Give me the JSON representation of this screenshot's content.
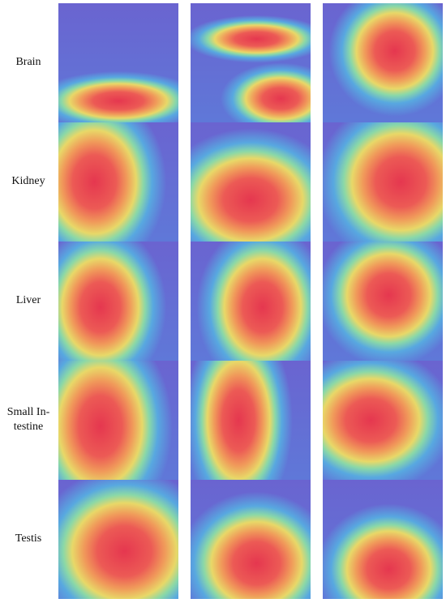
{
  "rows": [
    {
      "label": [
        "Brain"
      ]
    },
    {
      "label": [
        "Kidney"
      ]
    },
    {
      "label": [
        "Liver"
      ]
    },
    {
      "label": [
        "Small In-",
        "testine"
      ]
    },
    {
      "label": [
        "Testis"
      ]
    }
  ]
}
